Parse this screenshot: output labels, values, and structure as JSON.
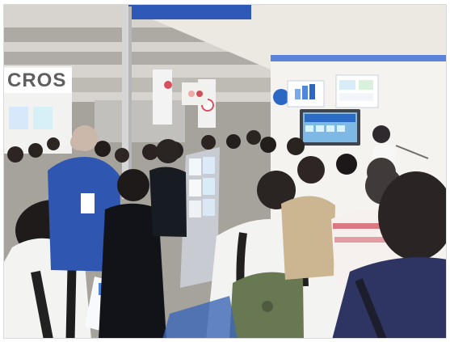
{
  "scene": {
    "signage": {
      "left_banner": "CROS"
    }
  }
}
